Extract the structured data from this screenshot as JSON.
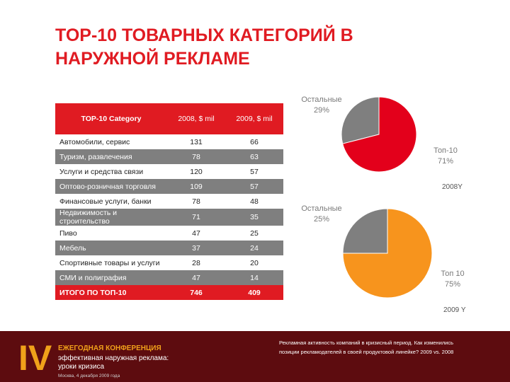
{
  "title_line1": "TOP-10 ТОВАРНЫХ КАТЕГОРИЙ В",
  "title_line2": "НАРУЖНОЙ РЕКЛАМЕ",
  "table": {
    "header_category": "TOP-10 Category",
    "header_2008": "2008, $ mil",
    "header_2009": "2009, $ mil",
    "rows": [
      {
        "category": "Автомобили, сервис",
        "v2008": "131",
        "v2009": "66"
      },
      {
        "category": "Туризм, развлечения",
        "v2008": "78",
        "v2009": "63"
      },
      {
        "category": "Услуги и средства связи",
        "v2008": "120",
        "v2009": "57"
      },
      {
        "category": "Оптово-розничная торговля",
        "v2008": "109",
        "v2009": "57"
      },
      {
        "category": "Финансовые услуги, банки",
        "v2008": "78",
        "v2009": "48"
      },
      {
        "category": "Недвижимость и строительство",
        "v2008": "71",
        "v2009": "35"
      },
      {
        "category": "Пиво",
        "v2008": "47",
        "v2009": "25"
      },
      {
        "category": "Мебель",
        "v2008": "37",
        "v2009": "24"
      },
      {
        "category": "Спортивные товары и услуги",
        "v2008": "28",
        "v2009": "20"
      },
      {
        "category": "СМИ и полиграфия",
        "v2008": "47",
        "v2009": "14"
      }
    ],
    "total": {
      "category": "ИТОГО ПО ТОП-10",
      "v2008": "746",
      "v2009": "409"
    }
  },
  "chart_data": [
    {
      "type": "pie",
      "title": "2008Y",
      "slices": [
        {
          "label": "Топ-10",
          "value": 71,
          "display": "71%",
          "color": "#e3001b"
        },
        {
          "label": "Остальные",
          "value": 29,
          "display": "29%",
          "color": "#7f7f7f"
        }
      ]
    },
    {
      "type": "pie",
      "title": "2009 Y",
      "slices": [
        {
          "label": "Топ 10",
          "value": 75,
          "display": "75%",
          "color": "#f7941d"
        },
        {
          "label": "Остальные",
          "value": 25,
          "display": "25%",
          "color": "#7f7f7f"
        }
      ]
    }
  ],
  "footer": {
    "roman": "IV",
    "conference": "ЕЖЕГОДНАЯ КОНФЕРЕНЦИЯ",
    "subtitle_line1": "эффективная наружная реклама:",
    "subtitle_line2": "уроки кризиса",
    "date": "Москва, 4 декабря 2009 года",
    "note_line1": "Рекламная активность компаний в кризисный период. Как изменились",
    "note_line2": "позиции рекламодателей в своей продуктовой линейке? 2009 vs. 2008"
  }
}
